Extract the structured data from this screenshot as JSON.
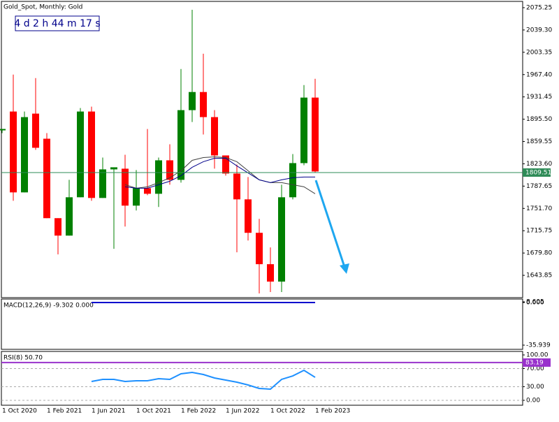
{
  "chart_data": [
    {
      "type": "candlestick",
      "title": "Gold_Spot, Monthly:  Gold",
      "countdown": "4 d 2 h 44 m 17 s",
      "categories": [
        "1 Oct 2020",
        null,
        null,
        null,
        "1 Feb 2021",
        null,
        null,
        null,
        "1 Jun 2021",
        null,
        null,
        null,
        "1 Oct 2021",
        null,
        null,
        null,
        "1 Feb 2022",
        null,
        null,
        null,
        "1 Jun 2022",
        null,
        null,
        null,
        "1 Oct 2022",
        null,
        null,
        null,
        "1 Feb 2023"
      ],
      "open": [
        1877.52,
        1907.86,
        1777.54,
        1904.49,
        1864.04,
        1735.97,
        1707.89,
        1769.67,
        1907.86,
        1768.55,
        1814.61,
        1815.74,
        1756.19,
        1784.28,
        1775.29,
        1829.22,
        1797.76,
        1910.1,
        1939.31,
        1898.87,
        1837.08,
        1807.87,
        1766.3,
        1712.38,
        1661.82,
        1633.74,
        1769.67,
        1824.72,
        1930.33
      ],
      "high": [
        1879.77,
        1967.4,
        1907.86,
        1961.78,
        1873.03,
        1735.97,
        1797.76,
        1913.47,
        1915.72,
        1833.71,
        1817.98,
        1838.2,
        1813.49,
        1879.77,
        1833.71,
        1855.06,
        1976.39,
        2071.88,
        2001.1,
        1910.1,
        1837.08,
        1822.48,
        1802.25,
        1734.85,
        1688.79,
        1789.9,
        1839.33,
        1950.55,
        1960.66
      ],
      "low": [
        1873.03,
        1764.06,
        1777.54,
        1846.07,
        1735.97,
        1677.55,
        1707.89,
        1769.67,
        1764.06,
        1768.55,
        1686.54,
        1722.49,
        1748.33,
        1773.04,
        1753.95,
        1789.9,
        1793.27,
        1891.01,
        1870.78,
        1815.74,
        1804.5,
        1680.92,
        1700.02,
        1614.64,
        1616.89,
        1616.89,
        1766.3,
        1821.35,
        1808.99
      ],
      "close": [
        1879.77,
        1777.54,
        1898.87,
        1849.44,
        1735.97,
        1707.89,
        1769.67,
        1907.86,
        1768.55,
        1814.61,
        1817.98,
        1756.19,
        1784.28,
        1775.29,
        1829.22,
        1797.76,
        1910.1,
        1939.31,
        1898.87,
        1837.08,
        1807.87,
        1766.3,
        1712.38,
        1661.82,
        1633.74,
        1769.67,
        1824.72,
        1930.33,
        1811.24
      ],
      "up_color": "#008000",
      "down_color": "#ff0000",
      "lines": [
        {
          "color": "#404040",
          "values": [
            null,
            null,
            null,
            null,
            null,
            null,
            null,
            null,
            null,
            null,
            null,
            1789.9,
            1784.28,
            1786.53,
            1793.27,
            1801.13,
            1812.37,
            1829.22,
            1833.71,
            1834.83,
            1833.71,
            1826.97,
            1812.37,
            1797.76,
            1793.27,
            1793.27,
            1789.9,
            1786.53,
            1775.29
          ]
        },
        {
          "color": "#00008b",
          "values": [
            null,
            null,
            null,
            null,
            null,
            null,
            null,
            null,
            null,
            null,
            null,
            1786.53,
            1784.28,
            1784.28,
            1789.9,
            1795.51,
            1804.5,
            1817.98,
            1826.97,
            1832.59,
            1832.59,
            1820.23,
            1809.0,
            1797.76,
            1793.27,
            1797.76,
            1801.13,
            1802.25,
            1802.25
          ]
        }
      ],
      "current_price": 1809.51,
      "current_color": "#2e8b57",
      "ylim": [
        1607.9,
        2085.36
      ],
      "yticks": [
        2075.25,
        {
          "value": 2039.3,
          "label": "2039.30"
        },
        2003.35,
        {
          "value": 1967.4,
          "label": "1967.40"
        },
        1931.45,
        {
          "value": 1895.5,
          "label": "1895.50"
        },
        1859.55,
        {
          "value": 1823.6,
          "label": "1823.60"
        },
        1787.65,
        {
          "value": 1751.7,
          "label": "1751.70"
        },
        1715.75,
        {
          "value": 1679.8,
          "label": "1679.80"
        },
        1643.85
      ]
    },
    {
      "type": "line",
      "title": "MACD(12,26,9) -9.302 0.000",
      "series": [
        {
          "color": "#0000cd",
          "values": [
            null,
            null,
            null,
            null,
            null,
            null,
            null,
            null,
            0,
            0,
            0,
            0,
            0,
            0,
            0,
            0,
            0,
            0,
            0,
            0,
            0,
            0,
            0,
            0,
            0,
            0,
            0,
            0,
            0
          ]
        }
      ],
      "ylim": [
        -39.47,
        2.95
      ],
      "yticks": [
        8.605,
        {
          "value": 0,
          "label": "0.000"
        },
        -35.939
      ]
    },
    {
      "type": "line",
      "title": "RSI(8) 50.70",
      "series": [
        {
          "color": "#1e90ff",
          "values": [
            null,
            null,
            null,
            null,
            null,
            null,
            null,
            null,
            41.5,
            46.2,
            46.2,
            41.5,
            43.1,
            43.1,
            47.7,
            46.2,
            58.5,
            61.5,
            56.9,
            49.2,
            44.6,
            40.0,
            33.8,
            26.2,
            24.6,
            46.2,
            53.8,
            66.2,
            50.7
          ]
        }
      ],
      "level": 83.19,
      "level_color": "#9932cc",
      "ylim": [
        -10.8,
        107.7
      ],
      "yticks": [
        {
          "value": 100,
          "label": "100.00"
        },
        {
          "value": 70,
          "label": "70.00"
        },
        {
          "value": 30,
          "label": "30.00"
        },
        {
          "value": 0,
          "label": "0.00"
        }
      ]
    }
  ]
}
